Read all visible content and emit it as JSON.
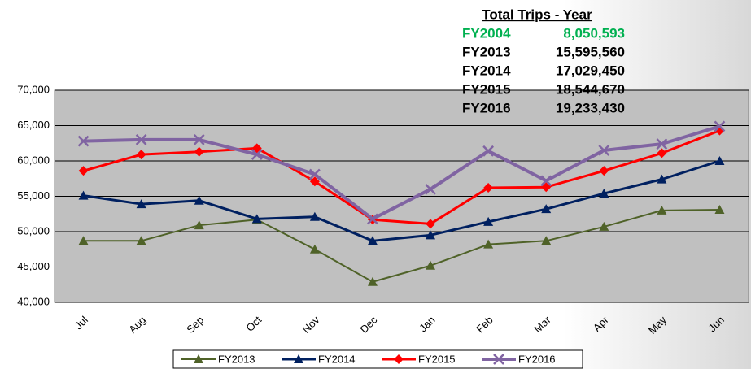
{
  "chart_data": {
    "type": "line",
    "categories": [
      "Jul",
      "Aug",
      "Sep",
      "Oct",
      "Nov",
      "Dec",
      "Jan",
      "Feb",
      "Mar",
      "Apr",
      "May",
      "Jun"
    ],
    "series": [
      {
        "name": "FY2013",
        "color": "#4f6228",
        "marker": "triangle",
        "values": [
          48700,
          48700,
          50900,
          51700,
          47500,
          42900,
          45200,
          48200,
          48700,
          50700,
          53000,
          53100
        ]
      },
      {
        "name": "FY2014",
        "color": "#002060",
        "marker": "triangle",
        "values": [
          55100,
          53900,
          54400,
          51800,
          52100,
          48700,
          49500,
          51400,
          53200,
          55400,
          57400,
          60000
        ]
      },
      {
        "name": "FY2015",
        "color": "#ff0000",
        "marker": "diamond",
        "values": [
          58600,
          60900,
          61300,
          61800,
          57100,
          51700,
          51100,
          56200,
          56300,
          58600,
          61100,
          64300
        ]
      },
      {
        "name": "FY2016",
        "color": "#8064a2",
        "marker": "x",
        "values": [
          62800,
          63000,
          63000,
          60900,
          58100,
          51800,
          56000,
          61400,
          57200,
          61500,
          62400,
          64900
        ]
      }
    ],
    "ylim": [
      40000,
      70000
    ],
    "yticks": [
      {
        "value": 40000,
        "label": "40,000"
      },
      {
        "value": 45000,
        "label": "45,000"
      },
      {
        "value": 50000,
        "label": "50,000"
      },
      {
        "value": 55000,
        "label": "55,000"
      },
      {
        "value": 60000,
        "label": "60,000"
      },
      {
        "value": 65000,
        "label": "65,000"
      },
      {
        "value": 70000,
        "label": "70,000"
      }
    ],
    "grid": true,
    "legend": "bottom",
    "annotation": {
      "title": "Total Trips - Year",
      "rows": [
        {
          "label": "FY2004",
          "value": "8,050,593",
          "color": "#00b050"
        },
        {
          "label": "FY2013",
          "value": "15,595,560",
          "color": "#000000"
        },
        {
          "label": "FY2014",
          "value": "17,029,450",
          "color": "#000000"
        },
        {
          "label": "FY2015",
          "value": "18,544,670",
          "color": "#000000"
        },
        {
          "label": "FY2016",
          "value": "19,233,430",
          "color": "#000000"
        }
      ]
    }
  }
}
